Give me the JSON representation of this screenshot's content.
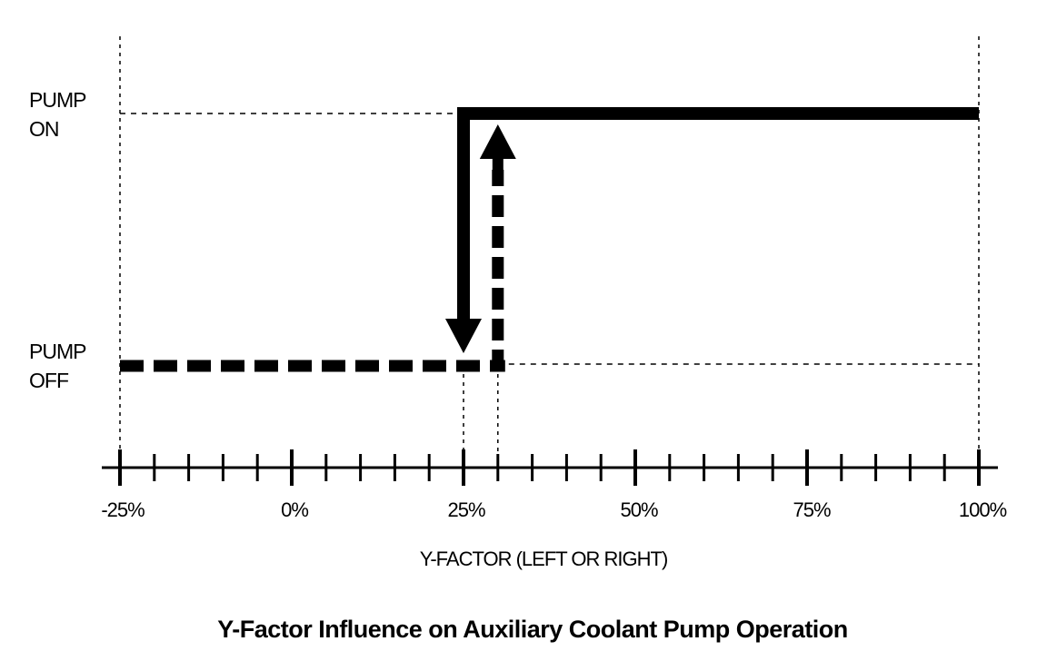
{
  "chart_data": {
    "type": "line",
    "title": "Y-Factor Influence on Auxiliary Coolant Pump Operation",
    "xlabel": "Y-FACTOR (LEFT OR RIGHT)",
    "ylabel": "",
    "xlim": [
      -25,
      100
    ],
    "x_tick_labels": [
      "-25%",
      "0%",
      "25%",
      "50%",
      "75%",
      "100%"
    ],
    "x_tick_values": [
      -25,
      0,
      25,
      50,
      75,
      100
    ],
    "minor_tick_step": 5,
    "y_levels": [
      "PUMP OFF",
      "PUMP ON"
    ],
    "y_level_labels": [
      {
        "line1": "PUMP",
        "line2": "OFF"
      },
      {
        "line1": "PUMP",
        "line2": "ON"
      }
    ],
    "series": [
      {
        "style": "dashed",
        "points": [
          [
            -25,
            0
          ],
          [
            30,
            0
          ],
          [
            30,
            1
          ]
        ],
        "arrow": "up"
      },
      {
        "style": "solid",
        "points": [
          [
            100,
            1
          ],
          [
            25,
            1
          ],
          [
            25,
            0
          ]
        ],
        "arrow": "down"
      }
    ],
    "reference_lines": {
      "vertical": [
        -25,
        25,
        30,
        100
      ],
      "horizontal": [
        "PUMP ON",
        "PUMP OFF"
      ]
    },
    "grid": false,
    "colors": {
      "ink": "#000000",
      "background": "#ffffff"
    }
  }
}
